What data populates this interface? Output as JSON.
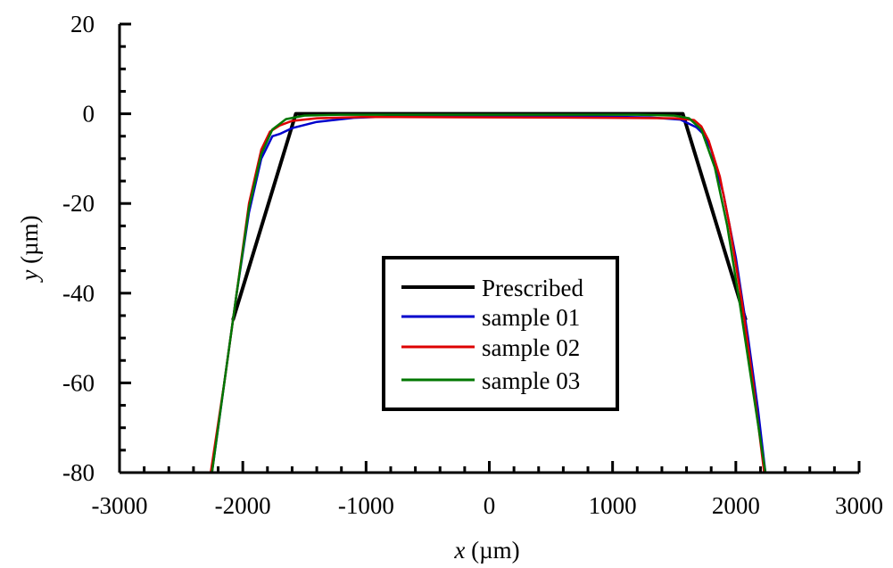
{
  "chart_data": {
    "type": "line",
    "title": "",
    "xlabel_var": "x",
    "xlabel_unit": " (µm)",
    "ylabel_var": "y",
    "ylabel_unit": " (µm)",
    "xlim": [
      -3000,
      3000
    ],
    "ylim": [
      -80,
      20
    ],
    "xticks": [
      -3000,
      -2000,
      -1000,
      0,
      1000,
      2000,
      3000
    ],
    "xtick_labels": [
      "-3000",
      "-2000",
      "-1000",
      "0",
      "1000",
      "2000",
      "3000"
    ],
    "yticks": [
      -80,
      -60,
      -40,
      -20,
      0,
      20
    ],
    "ytick_labels": [
      "-80",
      "-60",
      "-40",
      "-20",
      "0",
      "20"
    ],
    "grid": false,
    "legend_position": "center",
    "series": [
      {
        "name": "Prescribed",
        "color": "#000000",
        "points": [
          [
            -2080,
            -46
          ],
          [
            -1570,
            0
          ],
          [
            1570,
            0
          ],
          [
            2080,
            -46
          ]
        ]
      },
      {
        "name": "sample 01",
        "color": "#0000cc",
        "points": [
          [
            -2250,
            -80
          ],
          [
            -2150,
            -60
          ],
          [
            -2050,
            -40
          ],
          [
            -1950,
            -22
          ],
          [
            -1850,
            -10
          ],
          [
            -1760,
            -5
          ],
          [
            -1700,
            -4.5
          ],
          [
            -1600,
            -3.2
          ],
          [
            -1400,
            -1.8
          ],
          [
            -1100,
            -0.9
          ],
          [
            -800,
            -0.6
          ],
          [
            0,
            -0.6
          ],
          [
            800,
            -0.6
          ],
          [
            1300,
            -0.8
          ],
          [
            1550,
            -1.3
          ],
          [
            1680,
            -3
          ],
          [
            1740,
            -4.6
          ],
          [
            1800,
            -8
          ],
          [
            1900,
            -18
          ],
          [
            2000,
            -32
          ],
          [
            2100,
            -50
          ],
          [
            2180,
            -66
          ],
          [
            2240,
            -80
          ]
        ]
      },
      {
        "name": "sample 02",
        "color": "#dd0000",
        "points": [
          [
            -2260,
            -80
          ],
          [
            -2150,
            -60
          ],
          [
            -2050,
            -40
          ],
          [
            -1950,
            -20
          ],
          [
            -1850,
            -8
          ],
          [
            -1780,
            -4
          ],
          [
            -1700,
            -2.6
          ],
          [
            -1600,
            -1.6
          ],
          [
            -1400,
            -1
          ],
          [
            -1000,
            -0.7
          ],
          [
            0,
            -0.8
          ],
          [
            1000,
            -0.9
          ],
          [
            1500,
            -1
          ],
          [
            1660,
            -1.4
          ],
          [
            1720,
            -2.8
          ],
          [
            1780,
            -6
          ],
          [
            1870,
            -14
          ],
          [
            1950,
            -25
          ],
          [
            2050,
            -42
          ],
          [
            2140,
            -60
          ],
          [
            2230,
            -80
          ]
        ]
      },
      {
        "name": "sample 03",
        "color": "#007700",
        "points": [
          [
            -2250,
            -80
          ],
          [
            -2150,
            -60
          ],
          [
            -2050,
            -40
          ],
          [
            -1950,
            -21
          ],
          [
            -1850,
            -9
          ],
          [
            -1760,
            -3.5
          ],
          [
            -1650,
            -1.2
          ],
          [
            -1500,
            -0.4
          ],
          [
            -1200,
            -0.2
          ],
          [
            0,
            -0.2
          ],
          [
            1200,
            -0.2
          ],
          [
            1500,
            -0.4
          ],
          [
            1620,
            -1
          ],
          [
            1720,
            -3.5
          ],
          [
            1830,
            -12
          ],
          [
            1930,
            -25
          ],
          [
            2030,
            -42
          ],
          [
            2140,
            -62
          ],
          [
            2240,
            -80
          ]
        ]
      }
    ]
  }
}
